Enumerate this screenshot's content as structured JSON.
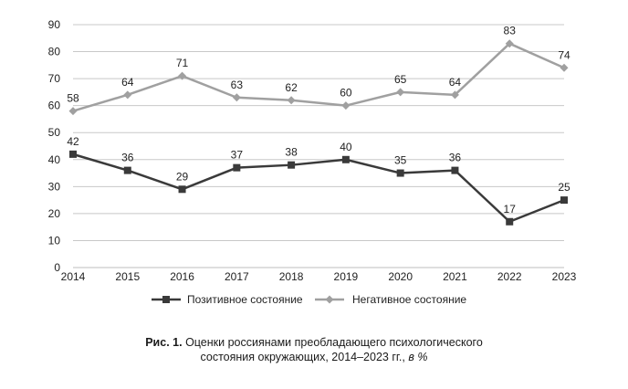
{
  "chart_data": {
    "type": "line",
    "x": [
      "2014",
      "2015",
      "2016",
      "2017",
      "2018",
      "2019",
      "2020",
      "2021",
      "2022",
      "2023"
    ],
    "yticks": [
      "0",
      "10",
      "20",
      "30",
      "40",
      "50",
      "60",
      "70",
      "80",
      "90"
    ],
    "ylim": [
      0,
      90
    ],
    "grid": "horizontal",
    "legend_position": "bottom",
    "series": [
      {
        "name": "Позитивное состояние",
        "values": [
          42,
          36,
          29,
          37,
          38,
          40,
          35,
          36,
          17,
          25
        ],
        "labels": [
          "42",
          "36",
          "29",
          "37",
          "38",
          "40",
          "35",
          "36",
          "17",
          "25"
        ],
        "color": "#3a3a3a",
        "marker": "square"
      },
      {
        "name": "Негативное состояние",
        "values": [
          58,
          64,
          71,
          63,
          62,
          60,
          65,
          64,
          83,
          74
        ],
        "labels": [
          "58",
          "64",
          "71",
          "63",
          "62",
          "60",
          "65",
          "64",
          "83",
          "74"
        ],
        "color": "#a0a0a0",
        "marker": "diamond"
      }
    ]
  },
  "caption": {
    "prefix": "Рис. 1.",
    "line1": "Оценки россиянами преобладающего психологического",
    "line2": "состояния окружающих, 2014–2023 гг.,",
    "unit": "в %"
  }
}
